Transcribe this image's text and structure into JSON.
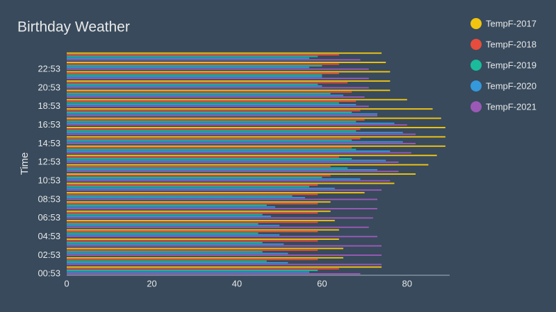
{
  "chart_data": {
    "type": "bar",
    "orientation": "horizontal",
    "title": "Birthday Weather",
    "y_label": "Time",
    "categories": [
      "00:53",
      null,
      "02:53",
      null,
      "04:53",
      null,
      "06:53",
      null,
      "08:53",
      null,
      "10:53",
      null,
      "12:53",
      null,
      "14:53",
      null,
      "16:53",
      null,
      "18:53",
      null,
      "20:53",
      null,
      "22:53",
      null
    ],
    "series": [
      {
        "name": "TempF-2017",
        "color": "#f1c40f",
        "values": [
          74,
          65,
          65,
          64,
          64,
          63,
          62,
          62,
          70,
          77,
          82,
          85,
          87,
          89,
          89,
          89,
          88,
          86,
          80,
          76,
          76,
          76,
          75,
          74
        ]
      },
      {
        "name": "TempF-2018",
        "color": "#e74c3c",
        "values": [
          64,
          59,
          59,
          59,
          59,
          59,
          59,
          59,
          59,
          59,
          62,
          62,
          64,
          67,
          69,
          69,
          70,
          69,
          68,
          67,
          66,
          64,
          64,
          64
        ]
      },
      {
        "name": "TempF-2019",
        "color": "#1abc9c",
        "values": [
          59,
          47,
          46,
          46,
          45,
          45,
          46,
          47,
          53,
          57,
          60,
          66,
          67,
          68,
          67,
          68,
          68,
          67,
          64,
          62,
          59,
          60,
          60,
          59
        ]
      },
      {
        "name": "TempF-2020",
        "color": "#3498db",
        "values": [
          57,
          52,
          52,
          51,
          50,
          50,
          48,
          49,
          56,
          63,
          69,
          73,
          75,
          76,
          79,
          79,
          77,
          73,
          68,
          65,
          60,
          60,
          57,
          57
        ]
      },
      {
        "name": "TempF-2021",
        "color": "#9b59b6",
        "values": [
          69,
          74,
          74,
          74,
          73,
          71,
          72,
          73,
          73,
          74,
          76,
          78,
          78,
          81,
          82,
          82,
          80,
          73,
          71,
          70,
          71,
          71,
          71,
          69
        ]
      }
    ],
    "xlim": [
      0,
      90
    ],
    "xticks": [
      0,
      20,
      40,
      60,
      80
    ],
    "legend": "right"
  }
}
